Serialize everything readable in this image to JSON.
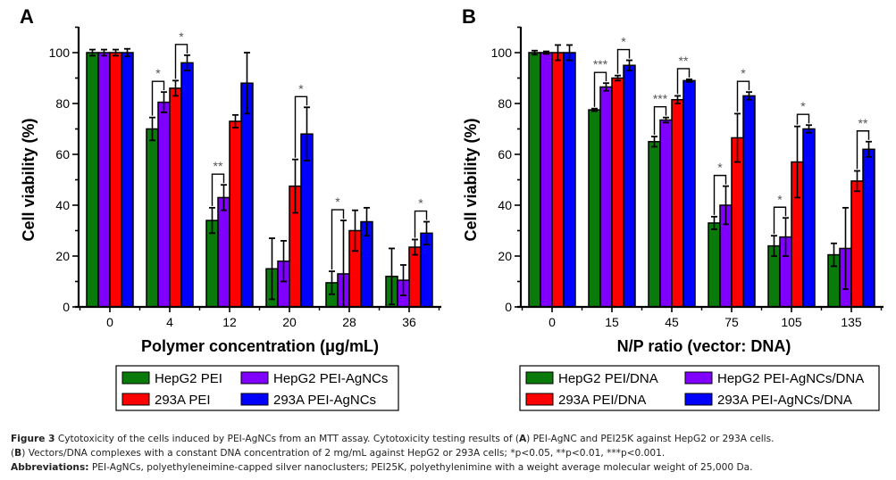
{
  "chart_data": [
    {
      "type": "bar",
      "panel": "A",
      "title": "",
      "xlabel": "Polymer concentration (μg/mL)",
      "ylabel": "Cell viability (%)",
      "ylim": [
        0,
        110
      ],
      "yticks": [
        0,
        20,
        40,
        60,
        80,
        100
      ],
      "categories": [
        "0",
        "4",
        "12",
        "20",
        "28",
        "36"
      ],
      "series": [
        {
          "name": "HepG2 PEI",
          "color": "#0a7a0a",
          "values": [
            100,
            70,
            34,
            15,
            9.5,
            12
          ],
          "errors": [
            1.2,
            4.5,
            5,
            12,
            4.5,
            11
          ]
        },
        {
          "name": "HepG2 PEI-AgNCs",
          "color": "#8000ff",
          "values": [
            100,
            80.5,
            43,
            18,
            13,
            10.5
          ],
          "errors": [
            1.2,
            4,
            5,
            8,
            21,
            6
          ]
        },
        {
          "name": "293A PEI",
          "color": "#ff0000",
          "values": [
            100,
            86,
            73,
            47.5,
            30,
            23.5
          ],
          "errors": [
            1.2,
            3,
            2.5,
            10.5,
            8,
            3
          ]
        },
        {
          "name": "293A PEI-AgNCs",
          "color": "#0000ff",
          "values": [
            100,
            96,
            88,
            68,
            33.5,
            29
          ],
          "errors": [
            1.5,
            3,
            12,
            10.5,
            5.5,
            4.5
          ]
        }
      ],
      "significance": [
        {
          "group": "4",
          "from": 0,
          "to": 1,
          "label": "*"
        },
        {
          "group": "4",
          "from": 2,
          "to": 3,
          "label": "*"
        },
        {
          "group": "12",
          "from": 0,
          "to": 1,
          "label": "**"
        },
        {
          "group": "20",
          "from": 2,
          "to": 3,
          "label": "*"
        },
        {
          "group": "28",
          "from": 0,
          "to": 1,
          "label": "*"
        },
        {
          "group": "36",
          "from": 2,
          "to": 3,
          "label": "*"
        }
      ],
      "legend": [
        "HepG2 PEI",
        "HepG2 PEI-AgNCs",
        "293A PEI",
        "293A PEI-AgNCs"
      ],
      "legend_position": "bottom"
    },
    {
      "type": "bar",
      "panel": "B",
      "title": "",
      "xlabel": "N/P ratio (vector: DNA)",
      "ylabel": "Cell viability (%)",
      "ylim": [
        0,
        110
      ],
      "yticks": [
        0,
        20,
        40,
        60,
        80,
        100
      ],
      "categories": [
        "0",
        "15",
        "45",
        "75",
        "105",
        "135"
      ],
      "series": [
        {
          "name": "HepG2 PEI/DNA",
          "color": "#0a7a0a",
          "values": [
            100,
            77.5,
            65,
            33,
            24,
            20.5
          ],
          "errors": [
            0.8,
            0.5,
            2,
            2.5,
            4,
            4.5
          ]
        },
        {
          "name": "HepG2 PEI-AgNCs/DNA",
          "color": "#8000ff",
          "values": [
            100,
            86.5,
            73.5,
            40,
            27.5,
            23
          ],
          "errors": [
            0.5,
            1.5,
            1,
            7.5,
            7.5,
            16
          ]
        },
        {
          "name": "293A PEI/DNA",
          "color": "#ff0000",
          "values": [
            100,
            90,
            81.5,
            66.5,
            57,
            49.5
          ],
          "errors": [
            3,
            1,
            1.5,
            9.5,
            14,
            4
          ]
        },
        {
          "name": "293A PEI-AgNCs/DNA",
          "color": "#0000ff",
          "values": [
            100,
            95,
            89,
            83,
            70,
            62
          ],
          "errors": [
            3,
            2,
            0.5,
            1.5,
            1.5,
            3
          ]
        }
      ],
      "significance": [
        {
          "group": "15",
          "from": 0,
          "to": 1,
          "label": "***"
        },
        {
          "group": "15",
          "from": 2,
          "to": 3,
          "label": "*"
        },
        {
          "group": "45",
          "from": 0,
          "to": 1,
          "label": "***"
        },
        {
          "group": "45",
          "from": 2,
          "to": 3,
          "label": "**"
        },
        {
          "group": "75",
          "from": 0,
          "to": 1,
          "label": "*"
        },
        {
          "group": "75",
          "from": 2,
          "to": 3,
          "label": "*"
        },
        {
          "group": "105",
          "from": 0,
          "to": 1,
          "label": "*"
        },
        {
          "group": "105",
          "from": 2,
          "to": 3,
          "label": "*"
        },
        {
          "group": "135",
          "from": 2,
          "to": 3,
          "label": "**"
        }
      ],
      "legend": [
        "HepG2 PEI/DNA",
        "HepG2 PEI-AgNCs/DNA",
        "293A PEI/DNA",
        "293A PEI-AgNCs/DNA"
      ],
      "legend_position": "bottom"
    }
  ],
  "caption": {
    "line1_bold": "Figure 3",
    "line1_text": " Cytotoxicity of the cells induced by PEI-AgNCs from an MTT assay. Cytotoxicity testing results of (",
    "line1_a": "A",
    "line1_tail": ") PEI-AgNC and PEI25K against HepG2 or 293A cells.",
    "line2_open": "(",
    "line2_b": "B",
    "line2_text": ") Vectors/DNA complexes with a constant DNA concentration of 2 mg/mL against HepG2 or 293A cells; *p<0.05, **p<0.01, ***p<0.001.",
    "line3_bold": "Abbreviations:",
    "line3_text": " PEI-AgNCs, polyethyleneimine-capped silver nanoclusters; PEI25K, polyethylenimine with a weight average molecular weight of 25,000 Da."
  }
}
